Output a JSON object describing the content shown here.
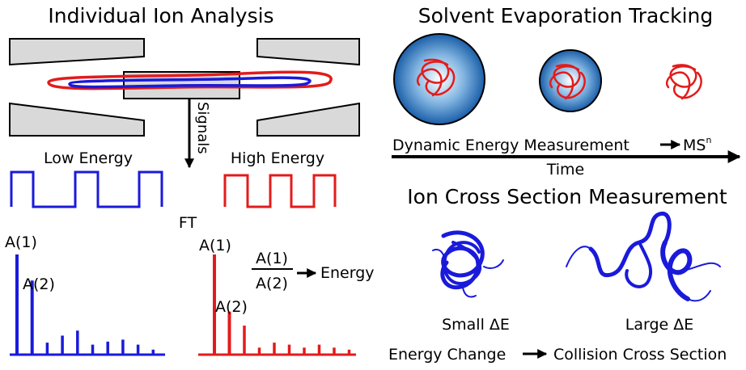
{
  "left_panel": {
    "title": "Individual Ion Analysis",
    "signals_label": "Signals",
    "low_energy_label": "Low Energy",
    "high_energy_label": "High Energy",
    "ft_label": "FT",
    "peak_a1": "A(1)",
    "peak_a2": "A(2)",
    "ratio_numerator": "A(1)",
    "ratio_denominator": "A(2)",
    "ratio_result": "Energy"
  },
  "evaporation_panel": {
    "title": "Solvent Evaporation Tracking",
    "measurement_label": "Dynamic Energy Measurement",
    "msn_label": "MS",
    "msn_superscript": "n",
    "time_label": "Time"
  },
  "cross_section_panel": {
    "title": "Ion Cross Section Measurement",
    "small_label": "Small ΔE",
    "large_label": "Large ΔE",
    "energy_change_label": "Energy Change",
    "collision_label": "Collision Cross Section"
  },
  "spectra": {
    "low_energy_peaks": [
      1.0,
      0.74,
      0.12,
      0.19,
      0.24,
      0.1,
      0.13,
      0.15,
      0.1,
      0.05
    ],
    "high_energy_peaks": [
      1.0,
      0.43,
      0.29,
      0.07,
      0.12,
      0.1,
      0.07,
      0.1,
      0.07,
      0.05
    ],
    "low_color": "#1a1adb",
    "high_color": "#e31b1b"
  },
  "colors": {
    "electrode_fill": "#d9d9d9",
    "droplet_edge": "#0b5a9e",
    "ion_red": "#e31b1b",
    "ion_blue": "#1a1adb"
  }
}
